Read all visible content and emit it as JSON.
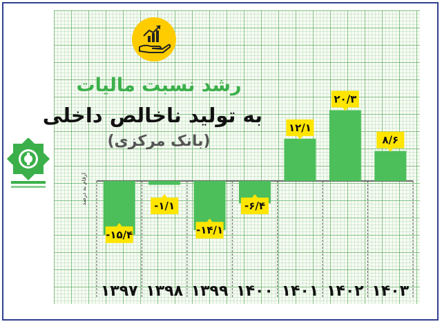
{
  "title": {
    "line1": "رشد نسبت مالیات",
    "line2": "به تولید ناخالص داخلی",
    "line3": "(بانک مرکزی)"
  },
  "unit_note": "ارقام به درصد",
  "logo_icon": "tax-organization-emblem-icon",
  "header_icon": "growth-chart-hand-icon",
  "colors": {
    "bar": "#4cbf5a",
    "label_bg": "#ffe500",
    "title_accent": "#3bb04a",
    "frame": "#2e3f8f",
    "grid": "#7cc47c"
  },
  "chart_data": {
    "type": "bar",
    "categories": [
      "۱۳۹۷",
      "۱۳۹۸",
      "۱۳۹۹",
      "۱۴۰۰",
      "۱۴۰۱",
      "۱۴۰۲",
      "۱۴۰۳"
    ],
    "values": [
      -15.4,
      -1.1,
      -14.1,
      -6.4,
      12.1,
      20.3,
      8.6
    ],
    "value_labels": [
      "-۱۵/۴",
      "-۱/۱",
      "-۱۴/۱",
      "-۶/۴",
      "۱۲/۱",
      "۲۰/۳",
      "۸/۶"
    ],
    "ylabel": "ارقام به درصد",
    "grid": true,
    "legend": "none"
  }
}
